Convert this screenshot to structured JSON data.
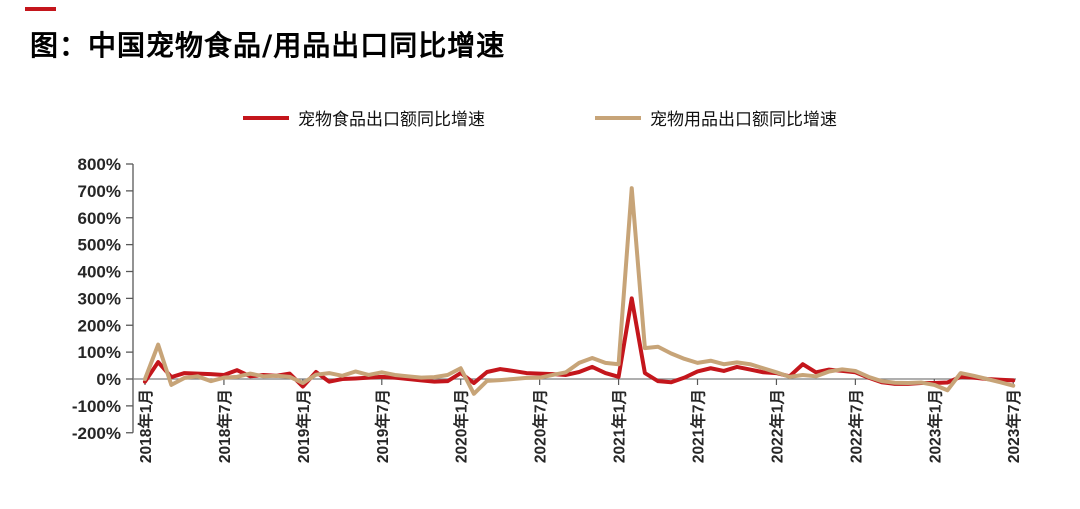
{
  "header": {
    "title": "图：中国宠物食品/用品出口同比增速",
    "accent_color": "#C4161C"
  },
  "chart_data": {
    "type": "line",
    "title": "图：中国宠物食品/用品出口同比增速",
    "x_freq": "monthly",
    "x_start": "2018年1月",
    "x_end": "2023年7月",
    "x_tick_every": 6,
    "x_tick_labels": [
      "2018年1月",
      "2018年7月",
      "2019年1月",
      "2019年7月",
      "2020年1月",
      "2020年7月",
      "2021年1月",
      "2021年7月",
      "2022年1月",
      "2022年7月",
      "2023年1月",
      "2023年7月"
    ],
    "ylim": [
      -200,
      800
    ],
    "y_unit": "%",
    "y_tick_labels": [
      "800%",
      "700%",
      "600%",
      "500%",
      "400%",
      "300%",
      "200%",
      "100%",
      "0%",
      "-100%",
      "-200%"
    ],
    "grid": false,
    "legend_position": "top-center",
    "axis_color": "#595959",
    "zero_line_color": "#7F7F7F",
    "tick_label_color": "#262626",
    "series": [
      {
        "name": "宠物食品出口额同比增速",
        "color": "#C4161C",
        "values": [
          -10,
          63,
          7,
          22,
          20,
          18,
          15,
          33,
          10,
          15,
          12,
          20,
          -28,
          26,
          -10,
          0,
          2,
          5,
          8,
          5,
          0,
          -5,
          -10,
          -8,
          22,
          -15,
          26,
          37,
          30,
          22,
          20,
          18,
          15,
          26,
          45,
          22,
          8,
          300,
          22,
          -8,
          -12,
          5,
          28,
          40,
          30,
          45,
          35,
          25,
          22,
          10,
          55,
          25,
          35,
          30,
          25,
          5,
          -12,
          -18,
          -18,
          -15,
          -15,
          -13,
          8,
          5,
          0,
          -3,
          -5
        ]
      },
      {
        "name": "宠物用品出口额同比增速",
        "color": "#C7A478",
        "values": [
          0,
          128,
          -22,
          4,
          10,
          -8,
          5,
          8,
          20,
          10,
          12,
          8,
          -15,
          16,
          22,
          12,
          28,
          15,
          25,
          15,
          10,
          5,
          7,
          15,
          40,
          -55,
          -7,
          -4,
          0,
          4,
          5,
          15,
          25,
          60,
          78,
          60,
          55,
          710,
          115,
          120,
          95,
          75,
          60,
          68,
          55,
          62,
          55,
          40,
          25,
          8,
          15,
          10,
          28,
          36,
          30,
          8,
          -8,
          -14,
          -15,
          -13,
          -22,
          -42,
          22,
          12,
          0,
          -12,
          -25
        ]
      }
    ]
  }
}
